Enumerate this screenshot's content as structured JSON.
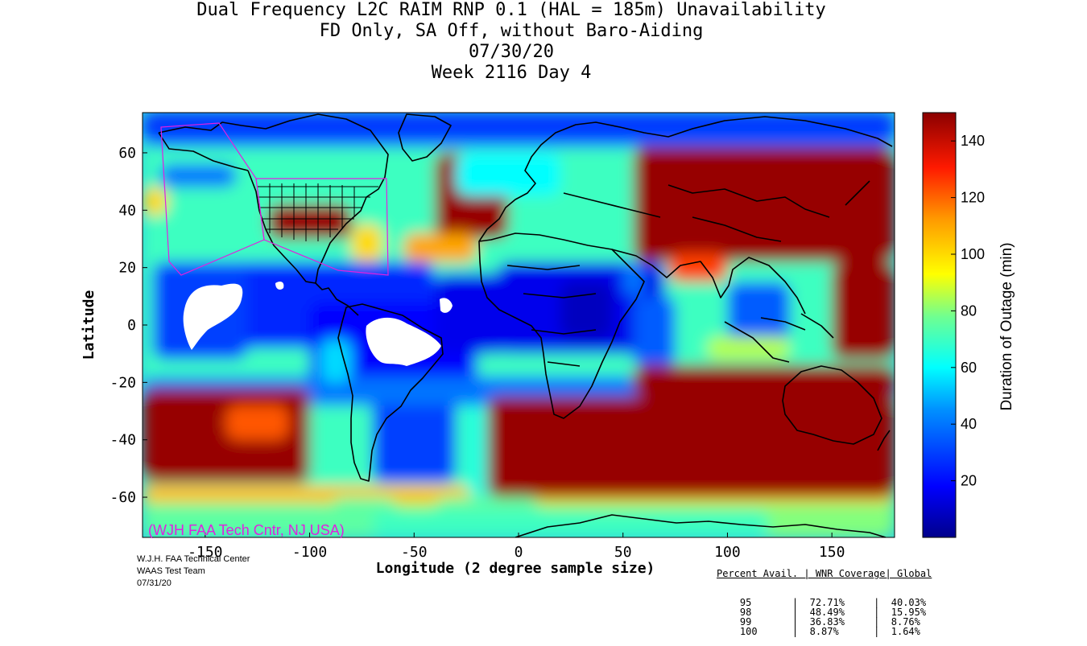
{
  "header": {
    "title_line1": "Dual Frequency L2C RAIM RNP 0.1 (HAL = 185m) Unavailability",
    "title_line2": "FD Only, SA Off, without Baro-Aiding",
    "title_line3": "07/30/20",
    "title_line4": "Week 2116 Day 4"
  },
  "watermark": "(WJH FAA Tech Cntr, NJ USA)",
  "credits": {
    "line1": "W.J.H. FAA Technical Center",
    "line2": "WAAS Test Team",
    "line3": "07/31/20"
  },
  "stats_table": {
    "header": "Percent Avail. | WNR Coverage| Global",
    "rows": [
      {
        "pct": "95",
        "wnr": "72.71%",
        "global": "40.03%"
      },
      {
        "pct": "98",
        "wnr": "48.49%",
        "global": "15.95%"
      },
      {
        "pct": "99",
        "wnr": "36.83%",
        "global": "8.76%"
      },
      {
        "pct": "100",
        "wnr": "8.87%",
        "global": "1.64%"
      }
    ]
  },
  "colors": {
    "dark_red": "#8b0000",
    "red": "#ff2a00",
    "orange": "#ff9900",
    "yellow": "#ffff00",
    "cyan": "#00e0ff",
    "light_blue": "#2aa8ff",
    "blue": "#1030ff",
    "dark_blue": "#00008b",
    "white_no_data": "#ffffff",
    "region_outline": "#e020e0",
    "watermark": "#e020e0"
  },
  "chart_data": {
    "type": "heatmap",
    "title": "Dual Frequency L2C RAIM RNP 0.1 (HAL = 185m) Unavailability",
    "xlabel": "Longitude (2 degree sample size)",
    "ylabel": "Latitude",
    "xlim": [
      -180,
      180
    ],
    "ylim": [
      -74,
      74
    ],
    "xticks": [
      -150,
      -100,
      -50,
      0,
      50,
      100,
      150
    ],
    "yticks": [
      60,
      40,
      20,
      0,
      -20,
      -40,
      -60
    ],
    "colorbar": {
      "label": "Duration of Outage (min)",
      "range": [
        0,
        150
      ],
      "ticks": [
        20,
        40,
        60,
        80,
        100,
        120,
        140
      ]
    },
    "regions": [
      {
        "lon": [
          -180,
          180
        ],
        "lat": [
          -74,
          74
        ],
        "v": 70
      },
      {
        "lon": [
          -180,
          180
        ],
        "lat": [
          62,
          74
        ],
        "v": 35
      },
      {
        "lon": [
          -180,
          180
        ],
        "lat": [
          -74,
          -60
        ],
        "v": 80
      },
      {
        "lon": [
          -180,
          180
        ],
        "lat": [
          -62,
          -56
        ],
        "v": 105
      },
      {
        "lon": [
          -150,
          -40
        ],
        "lat": [
          -8,
          22
        ],
        "v": 25
      },
      {
        "lon": [
          -175,
          -130
        ],
        "lat": [
          -12,
          22
        ],
        "v": 30
      },
      {
        "lon": [
          -100,
          -20
        ],
        "lat": [
          -22,
          8
        ],
        "v": 18
      },
      {
        "lon": [
          -40,
          -5
        ],
        "lat": [
          -10,
          18
        ],
        "v": 15
      },
      {
        "lon": [
          -10,
          70
        ],
        "lat": [
          -10,
          22
        ],
        "v": 15
      },
      {
        "lon": [
          20,
          45
        ],
        "lat": [
          -5,
          15
        ],
        "v": 8
      },
      {
        "lon": [
          -70,
          -30
        ],
        "lat": [
          -55,
          -20
        ],
        "v": 30
      },
      {
        "lon": [
          -25,
          -5
        ],
        "lat": [
          -60,
          -25
        ],
        "v": 65
      },
      {
        "lon": [
          55,
          75
        ],
        "lat": [
          -15,
          10
        ],
        "v": 35
      },
      {
        "lon": [
          100,
          130
        ],
        "lat": [
          -5,
          15
        ],
        "v": 35
      },
      {
        "lon": [
          -180,
          180
        ],
        "lat": [
          -28,
          -18
        ],
        "v": 40
      },
      {
        "lon": [
          -172,
          -135
        ],
        "lat": [
          48,
          56
        ],
        "v": 40
      },
      {
        "lon": [
          -180,
          -90
        ],
        "lat": [
          -74,
          -62
        ],
        "v": 75
      },
      {
        "lon": [
          -180,
          -100
        ],
        "lat": [
          -55,
          -22
        ],
        "v": 148
      },
      {
        "lon": [
          -140,
          -110
        ],
        "lat": [
          -40,
          -28
        ],
        "v": 122
      },
      {
        "lon": [
          -90,
          -58
        ],
        "lat": [
          -74,
          -60
        ],
        "v": 75
      },
      {
        "lon": [
          -40,
          10
        ],
        "lat": [
          -74,
          -60
        ],
        "v": 75
      },
      {
        "lon": [
          -15,
          180
        ],
        "lat": [
          -60,
          -25
        ],
        "v": 148
      },
      {
        "lon": [
          55,
          180
        ],
        "lat": [
          -25,
          -14
        ],
        "v": 148
      },
      {
        "lon": [
          65,
          180
        ],
        "lat": [
          -28,
          -22
        ],
        "v": 148
      },
      {
        "lon": [
          90,
          130
        ],
        "lat": [
          -12,
          -4
        ],
        "v": 85
      },
      {
        "lon": [
          -70,
          120
        ],
        "lat": [
          -74,
          -65
        ],
        "v": 70
      },
      {
        "lon": [
          -40,
          -5
        ],
        "lat": [
          30,
          60
        ],
        "v": 148
      },
      {
        "lon": [
          -55,
          -20
        ],
        "lat": [
          22,
          32
        ],
        "v": 110
      },
      {
        "lon": [
          55,
          180
        ],
        "lat": [
          22,
          62
        ],
        "v": 148
      },
      {
        "lon": [
          150,
          180
        ],
        "lat": [
          -12,
          22
        ],
        "v": 148
      },
      {
        "lon": [
          72,
          100
        ],
        "lat": [
          15,
          25
        ],
        "v": 125
      },
      {
        "lon": [
          -180,
          -168
        ],
        "lat": [
          38,
          48
        ],
        "v": 100
      },
      {
        "lon": [
          -160,
          -140
        ],
        "lat": [
          28,
          38
        ],
        "v": 70
      },
      {
        "lon": [
          -120,
          -80
        ],
        "lat": [
          30,
          42
        ],
        "v": 148
      },
      {
        "lon": [
          -80,
          -65
        ],
        "lat": [
          22,
          35
        ],
        "v": 100
      },
      {
        "lon": [
          -30,
          20
        ],
        "lat": [
          45,
          60
        ],
        "v": 60
      },
      {
        "lon": [
          50,
          60
        ],
        "lat": [
          10,
          22
        ],
        "v": 40
      },
      {
        "lon": [
          -95,
          -80
        ],
        "lat": [
          -20,
          -5
        ],
        "v": 55
      },
      {
        "lon": [
          -180,
          180
        ],
        "lat": [
          66,
          74
        ],
        "v": 28
      }
    ],
    "no_data_areas": [
      "central Pacific near 150W-120W, 10S-10N",
      "northern Brazil near 60W-35W, 0-12S",
      "small area near 30W, 8N"
    ]
  }
}
